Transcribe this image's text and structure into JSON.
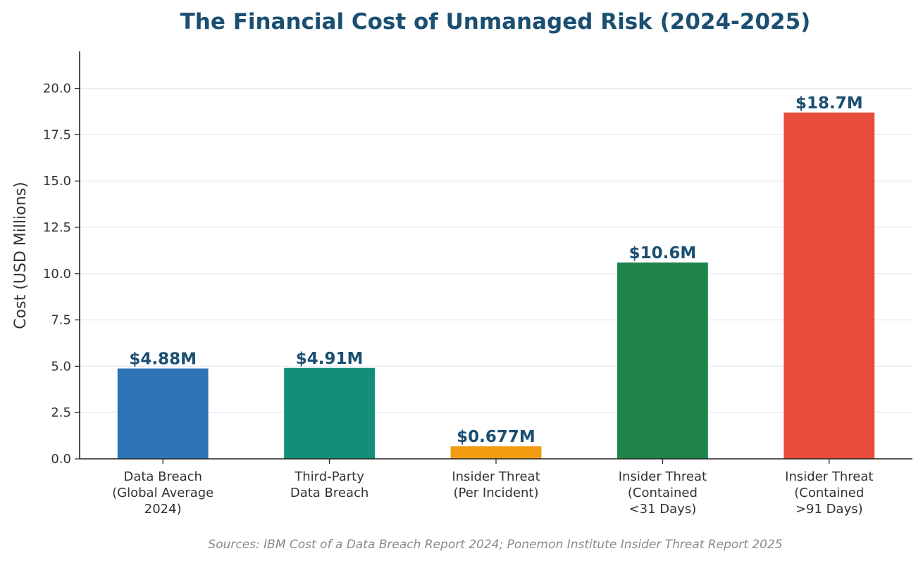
{
  "chart_data": {
    "type": "bar",
    "title": "The Financial Cost of Unmanaged Risk (2024-2025)",
    "ylabel": "Cost (USD Millions)",
    "xlabel": "",
    "ylim": [
      0,
      22
    ],
    "yticks": [
      "0.0",
      "2.5",
      "5.0",
      "7.5",
      "10.0",
      "12.5",
      "15.0",
      "17.5",
      "20.0"
    ],
    "grid": true,
    "categories": [
      [
        "Data Breach",
        "(Global Average",
        "2024)"
      ],
      [
        "Third-Party",
        "Data Breach"
      ],
      [
        "Insider Threat",
        "(Per Incident)"
      ],
      [
        "Insider Threat",
        "(Contained",
        "<31 Days)"
      ],
      [
        "Insider Threat",
        "(Contained",
        ">91 Days)"
      ]
    ],
    "values": [
      4.88,
      4.91,
      0.677,
      10.6,
      18.7
    ],
    "data_labels": [
      "$4.88M",
      "$4.91M",
      "$0.677M",
      "$10.6M",
      "$18.7M"
    ],
    "colors": [
      "#2e75b6",
      "#148f77",
      "#f39c12",
      "#1e8449",
      "#e74c3c"
    ],
    "source": "Sources: IBM Cost of a Data Breach Report 2024; Ponemon Institute Insider Threat Report 2025"
  }
}
